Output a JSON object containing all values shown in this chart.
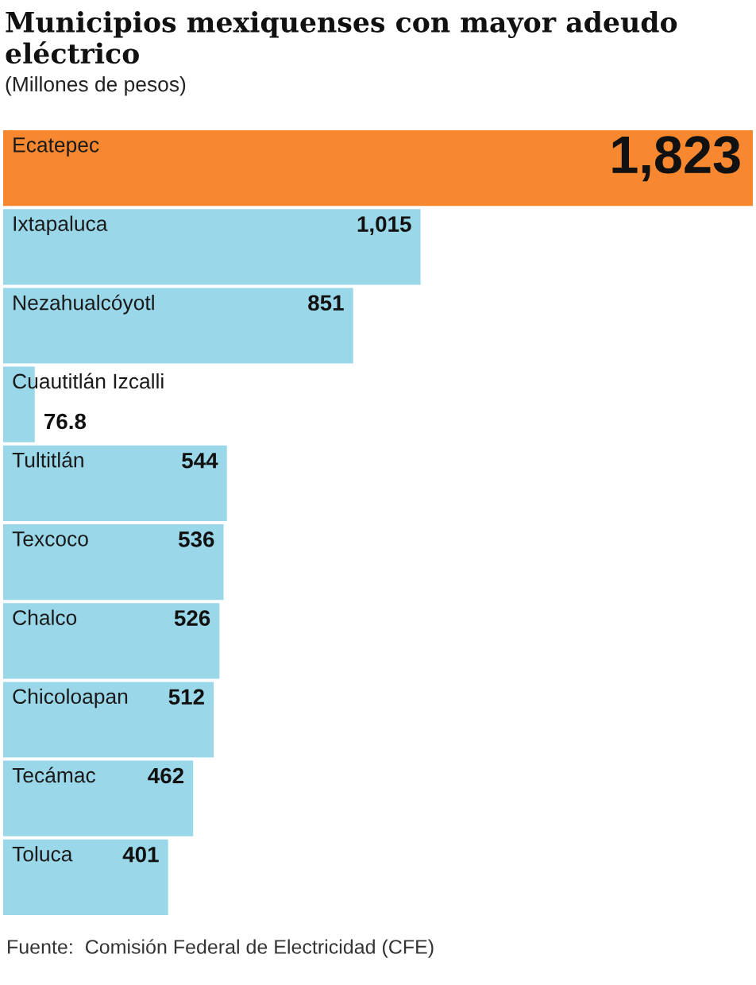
{
  "chart_data": {
    "type": "bar",
    "orientation": "horizontal",
    "title": "Municipios mexiquenses con mayor adeudo eléctrico",
    "subtitle": "(Millones de pesos)",
    "categories": [
      "Ecatepec",
      "Ixtapaluca",
      "Nezahualcóyotl",
      "Cuautitlán Izcalli",
      "Tultitlán",
      "Texcoco",
      "Chalco",
      "Chicoloapan",
      "Tecámac",
      "Toluca"
    ],
    "values": [
      1823,
      1015,
      851,
      76.8,
      544,
      536,
      526,
      512,
      462,
      401
    ],
    "colors": [
      "#f7882f",
      "#9ad7e9",
      "#9ad7e9",
      "#9ad7e9",
      "#9ad7e9",
      "#9ad7e9",
      "#9ad7e9",
      "#9ad7e9",
      "#9ad7e9",
      "#9ad7e9"
    ],
    "value_labels": [
      "1,823",
      "1,015",
      "851",
      "76.8",
      "544",
      "536",
      "526",
      "512",
      "462",
      "401"
    ],
    "annotations": [
      "Fuente:  Comisión Federal de Electricidad (CFE)"
    ]
  }
}
